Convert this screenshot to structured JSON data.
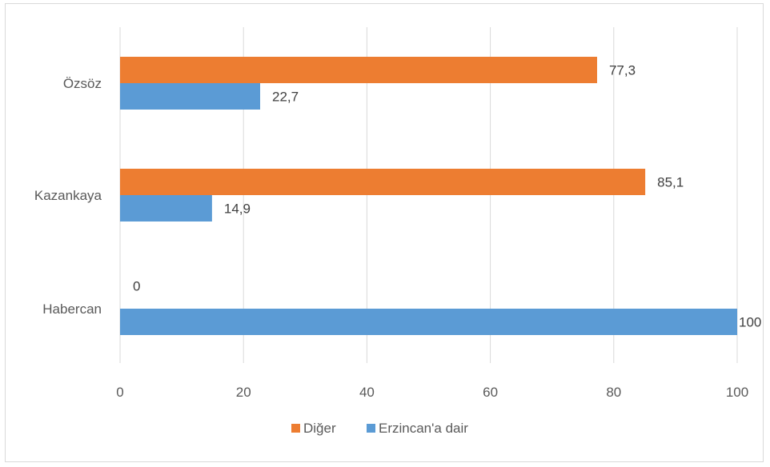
{
  "chart_data": {
    "type": "bar",
    "orientation": "horizontal",
    "categories": [
      "Özsöz",
      "Kazankaya",
      "Habercan"
    ],
    "series": [
      {
        "name": "Diğer",
        "color": "#ed7d31",
        "values": [
          77.3,
          85.1,
          0
        ],
        "labels": [
          "77,3",
          "85,1",
          "0"
        ]
      },
      {
        "name": "Erzincan'a dair",
        "color": "#5b9bd5",
        "values": [
          22.7,
          14.9,
          100
        ],
        "labels": [
          "22,7",
          "14,9",
          "100"
        ]
      }
    ],
    "xlim": [
      0,
      100
    ],
    "xticks": [
      0,
      20,
      40,
      60,
      80,
      100
    ],
    "xtick_labels": [
      "0",
      "20",
      "40",
      "60",
      "80",
      "100"
    ],
    "grid": true,
    "legend": "bottom",
    "legend_order": [
      "Diğer",
      "Erzincan'a dair"
    ]
  }
}
